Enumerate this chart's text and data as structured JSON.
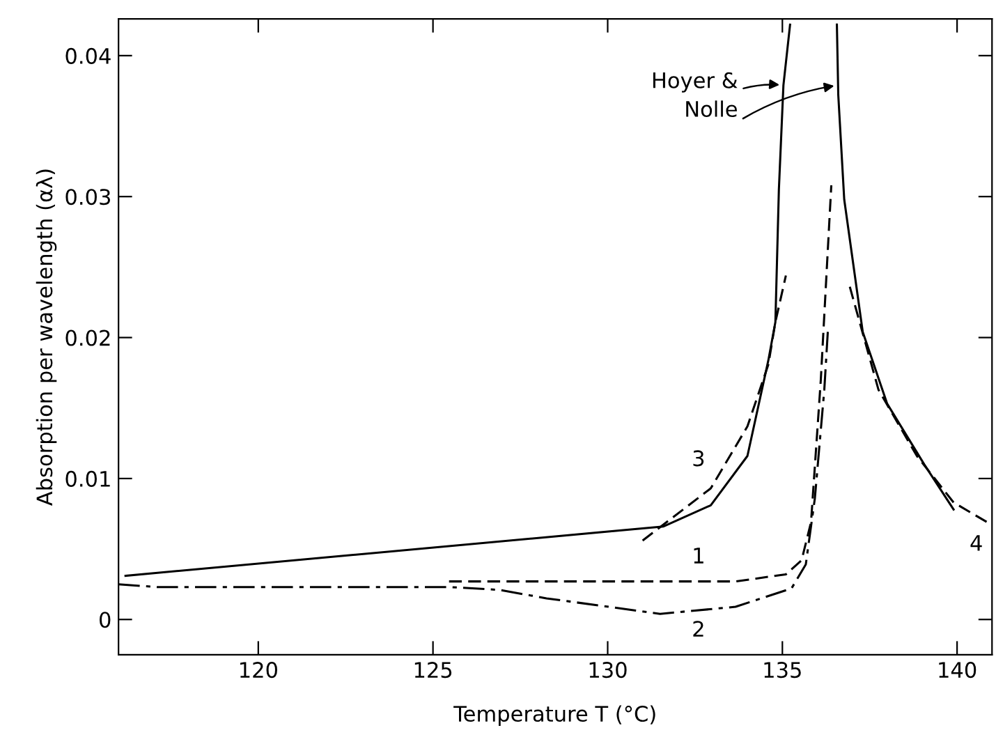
{
  "chart_data": {
    "type": "line",
    "xlabel": "Temperature T (°C)",
    "ylabel": "Absorption per wavelength (αλ)",
    "xlim": [
      116,
      141
    ],
    "ylim": [
      -0.0025,
      0.0426
    ],
    "xticks": [
      120,
      125,
      130,
      135,
      140
    ],
    "yticks": [
      {
        "value": 0,
        "label": "0"
      },
      0.01,
      0.02,
      0.03,
      0.04
    ],
    "grid": false,
    "series": [
      {
        "color": "#000000",
        "line_style": "solid",
        "x": [
          116.2,
          131.6,
          132.95,
          134.0,
          134.6,
          134.8,
          134.9,
          135.03,
          135.22
        ],
        "values": [
          0.0031,
          0.0066,
          0.0081,
          0.0116,
          0.0184,
          0.0211,
          0.0305,
          0.0379,
          0.0422
        ]
      },
      {
        "color": "#000000",
        "line_style": "solid",
        "x": [
          136.56,
          136.6,
          136.77,
          137.3,
          138.0,
          139.06,
          139.9
        ],
        "values": [
          0.0422,
          0.0372,
          0.0298,
          0.0204,
          0.0153,
          0.011,
          0.0078
        ]
      },
      {
        "name": "1",
        "color": "#000000",
        "line_style": "dashed",
        "x": [
          125.46,
          126.9,
          133.66,
          135.1,
          135.55,
          135.82,
          136.1,
          136.4
        ],
        "values": [
          0.0027,
          0.0027,
          0.0027,
          0.0032,
          0.0042,
          0.0069,
          0.017,
          0.0308
        ]
      },
      {
        "name": "2",
        "color": "#000000",
        "line_style": "dashdot",
        "x": [
          116.0,
          117.1,
          120.05,
          125.46,
          126.9,
          128.25,
          131.5,
          133.66,
          135.26,
          135.67,
          135.93,
          136.2,
          136.3
        ],
        "values": [
          0.0025,
          0.0023,
          0.0023,
          0.0023,
          0.0021,
          0.0015,
          0.0004,
          0.0009,
          0.0022,
          0.0039,
          0.0086,
          0.0163,
          0.0204
        ]
      },
      {
        "name": "3",
        "color": "#000000",
        "line_style": "dashed",
        "x": [
          131.0,
          132.95,
          134.0,
          134.6,
          134.8,
          135.1
        ],
        "values": [
          0.0056,
          0.0093,
          0.0137,
          0.0181,
          0.0211,
          0.0244
        ]
      },
      {
        "name": "4",
        "color": "#000000",
        "line_style": "dashed",
        "x": [
          136.93,
          137.75,
          138.85,
          139.9,
          141.0
        ],
        "values": [
          0.0236,
          0.0163,
          0.0116,
          0.0083,
          0.0067
        ]
      }
    ],
    "annotations": [
      {
        "text": "Hoyer &\nNolle",
        "x": 135.03,
        "y": 0.0379
      }
    ]
  }
}
